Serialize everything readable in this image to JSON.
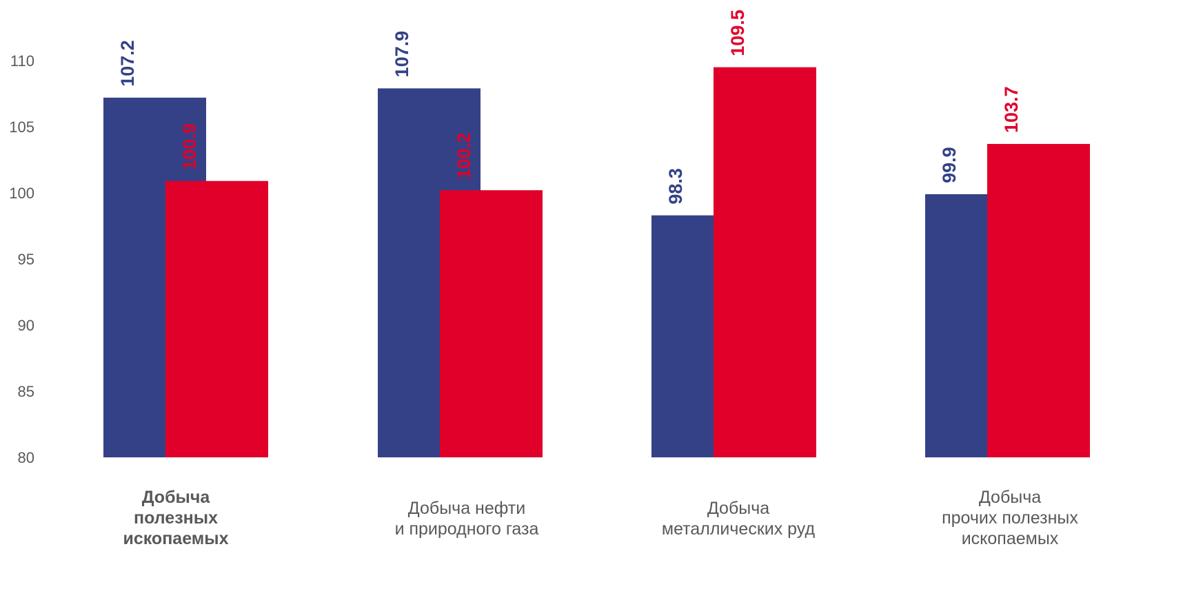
{
  "chart_data": {
    "type": "bar",
    "categories": [
      "Добыча\nполезных\nископаемых",
      "Добыча нефти\nи природного газа",
      "Добыча\nметаллических руд",
      "Добыча\nпрочих полезных\nископаемых"
    ],
    "category_bold": [
      true,
      false,
      false,
      false
    ],
    "series": [
      {
        "values": [
          107.2,
          107.9,
          98.3,
          99.9
        ],
        "color": "#344187"
      },
      {
        "values": [
          100.9,
          100.2,
          109.5,
          103.7
        ],
        "color": "#E0002A"
      }
    ],
    "yticks": [
      "80",
      "85",
      "90",
      "95",
      "100",
      "105",
      "110"
    ],
    "ylim": [
      80,
      110
    ],
    "title": "",
    "xlabel": "",
    "ylabel": "",
    "grid": false,
    "legend": "none"
  }
}
